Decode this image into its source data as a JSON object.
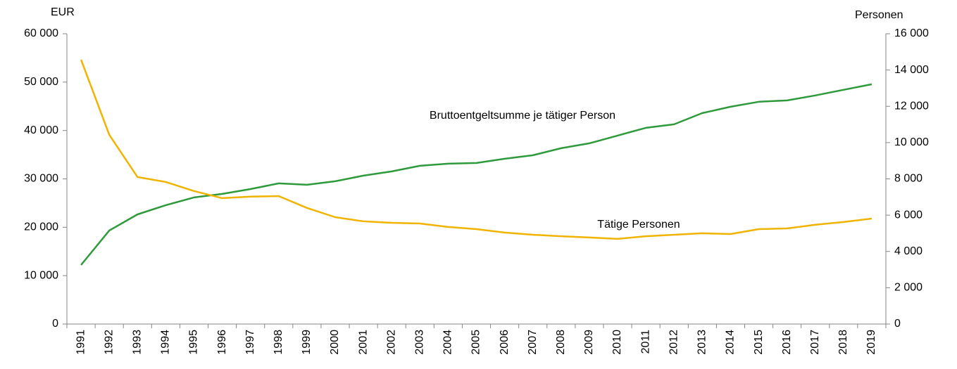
{
  "chart_data": {
    "type": "line",
    "y_label": "EUR",
    "y2_label": "Personen",
    "categories": [
      "1991",
      "1992",
      "1993",
      "1994",
      "1995",
      "1996",
      "1997",
      "1998",
      "1999",
      "2000",
      "2001",
      "2002",
      "2003",
      "2004",
      "2005",
      "2006",
      "2007",
      "2008",
      "2009",
      "2010",
      "2011",
      "2012",
      "2013",
      "2014",
      "2015",
      "2016",
      "2017",
      "2018",
      "2019"
    ],
    "series": [
      {
        "name": "Bruttoentgeltsumme je tätiger Person",
        "color": "#2e9a3c",
        "axis": "y",
        "values": [
          12200,
          19330,
          22670,
          24560,
          26160,
          26890,
          27900,
          29070,
          28780,
          29500,
          30670,
          31540,
          32700,
          33140,
          33280,
          34160,
          34880,
          36340,
          37350,
          38950,
          40550,
          41280,
          43600,
          44910,
          45930,
          46220,
          47240,
          48400,
          49560
        ]
      },
      {
        "name": "Tätige Personen",
        "color": "#f0b400",
        "axis": "y2",
        "values": [
          14570,
          10430,
          8100,
          7830,
          7330,
          6940,
          7020,
          7050,
          6400,
          5890,
          5660,
          5580,
          5540,
          5350,
          5230,
          5040,
          4920,
          4840,
          4770,
          4690,
          4840,
          4920,
          5000,
          4960,
          5230,
          5270,
          5470,
          5620,
          5810
        ]
      }
    ],
    "ylim": [
      0,
      60000
    ],
    "yticks": [
      0,
      {
        "value": 10000,
        "label": "10 000"
      },
      {
        "value": 20000,
        "label": "20 000"
      },
      {
        "value": 30000,
        "label": "30 000"
      },
      {
        "value": 40000,
        "label": "40 000"
      },
      {
        "value": 50000,
        "label": "50 000"
      },
      {
        "value": 60000,
        "label": "60 000"
      }
    ],
    "y2lim": [
      0,
      16000
    ],
    "y2ticks": [
      0,
      {
        "value": 2000,
        "label": "2 000"
      },
      {
        "value": 4000,
        "label": "4 000"
      },
      {
        "value": 6000,
        "label": "6 000"
      },
      {
        "value": 8000,
        "label": "8 000"
      },
      {
        "value": 10000,
        "label": "10 000"
      },
      {
        "value": 12000,
        "label": "12 000"
      },
      {
        "value": 14000,
        "label": "14 000"
      },
      {
        "value": 16000,
        "label": "16 000"
      }
    ],
    "grid": false
  }
}
